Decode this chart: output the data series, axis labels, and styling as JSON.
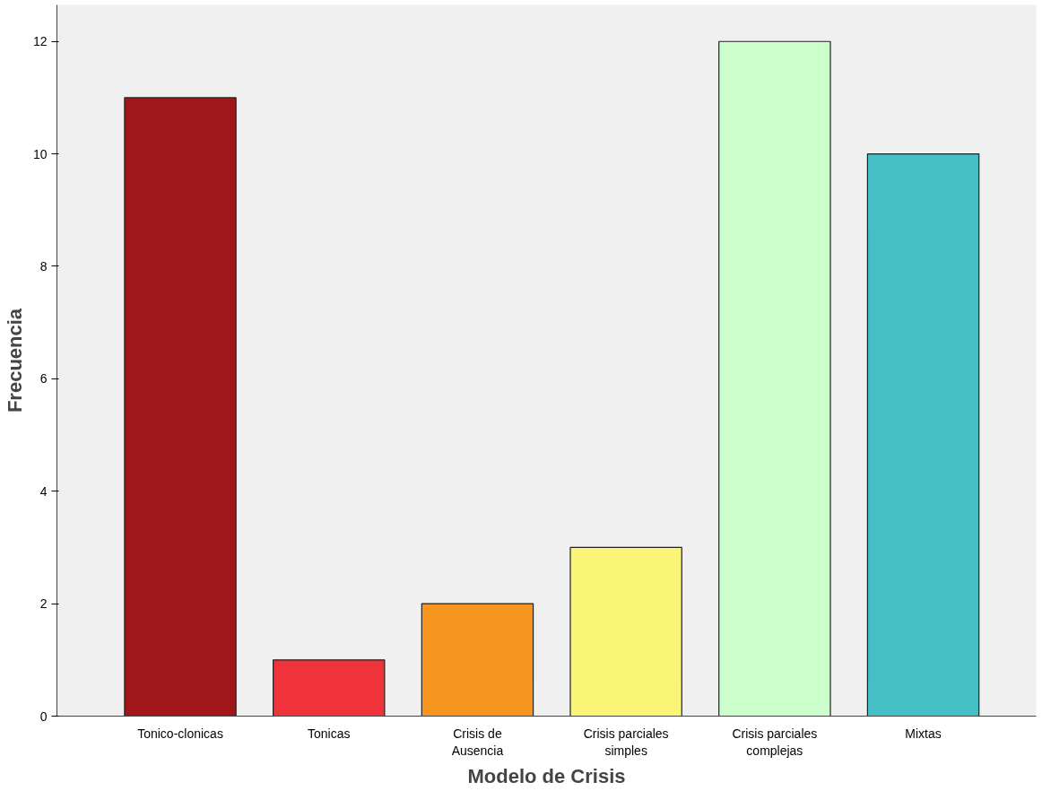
{
  "chart_data": {
    "type": "bar",
    "xlabel": "Modelo de Crisis",
    "ylabel": "Frecuencia",
    "categories": [
      "Tonico-clonicas",
      "Tonicas",
      "Crisis de Ausencia",
      "Crisis parciales simples",
      "Crisis parciales complejas",
      "Mixtas"
    ],
    "values": [
      11,
      1,
      2,
      3,
      12,
      10
    ],
    "colors": [
      "#a0161a",
      "#f0323a",
      "#f7961e",
      "#faf576",
      "#ccffcc",
      "#45bfc4"
    ],
    "ylim": [
      0,
      12.65
    ],
    "yticks": [
      0,
      2,
      4,
      6,
      8,
      10,
      12
    ],
    "grid": false
  }
}
